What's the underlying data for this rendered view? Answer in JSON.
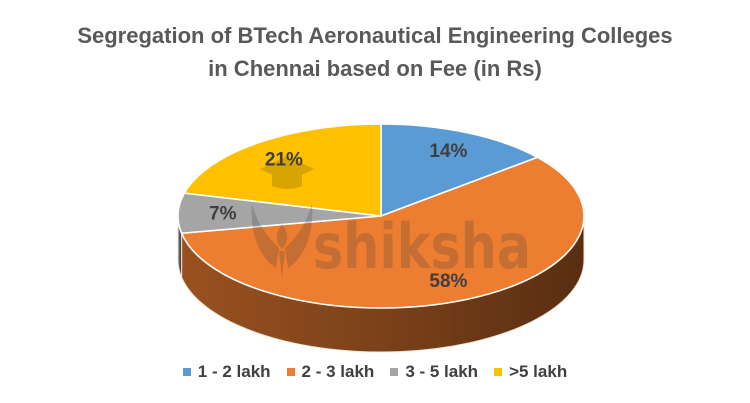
{
  "title": {
    "line1": "Segregation of BTech Aeronautical Engineering Colleges",
    "line2": "in Chennai based on Fee (in Rs)"
  },
  "chart_data": {
    "type": "pie",
    "style": "3d",
    "title": "Segregation of BTech Aeronautical Engineering Colleges in Chennai based on Fee (in Rs)",
    "categories": [
      "1 - 2 lakh",
      "2 - 3 lakh",
      "3 - 5 lakh",
      ">5 lakh"
    ],
    "values": [
      14,
      58,
      7,
      21
    ],
    "unit": "%",
    "data_labels": [
      "14%",
      "58%",
      "7%",
      "21%"
    ],
    "colors": [
      "#5B9BD5",
      "#ED7D31",
      "#A5A5A5",
      "#FFC000"
    ],
    "start_angle_deg": 0,
    "direction": "clockwise",
    "legend_position": "bottom",
    "title_color": "#595959",
    "label_text_color": "#3F3F3F"
  },
  "watermark": {
    "text": "shiksha"
  }
}
